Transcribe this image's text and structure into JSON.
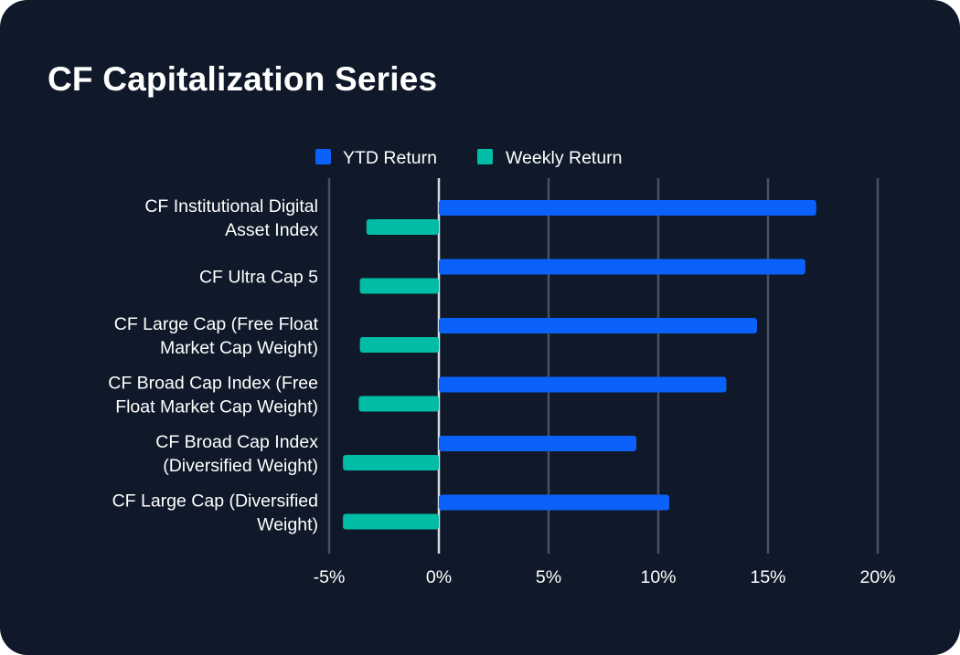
{
  "title": "CF Capitalization Series",
  "chart_data": {
    "type": "bar",
    "orientation": "horizontal",
    "title": "CF Capitalization Series",
    "categories": [
      [
        "CF Institutional Digital",
        "Asset Index"
      ],
      [
        "CF Ultra Cap 5"
      ],
      [
        "CF Large Cap (Free Float",
        "Market Cap Weight)"
      ],
      [
        "CF Broad Cap Index (Free",
        "Float Market Cap Weight)"
      ],
      [
        "CF Broad Cap Index",
        "(Diversified Weight)"
      ],
      [
        "CF Large Cap (Diversified",
        "Weight)"
      ]
    ],
    "series": [
      {
        "name": "YTD Return",
        "color": "#0a62fa",
        "values": [
          17.2,
          16.7,
          14.5,
          13.1,
          9.0,
          10.5
        ]
      },
      {
        "name": "Weekly Return",
        "color": "#02bda6",
        "values": [
          -3.3,
          -3.6,
          -3.6,
          -3.65,
          -4.37,
          -4.37
        ]
      }
    ],
    "xlim": [
      -5,
      20
    ],
    "xticks": [
      -5,
      0,
      5,
      10,
      15,
      20
    ],
    "xtick_labels": [
      "-5%",
      "0%",
      "5%",
      "10%",
      "15%",
      "20%"
    ],
    "xlabel": "",
    "ylabel": "",
    "grid": true,
    "legend_position": "top-center"
  }
}
